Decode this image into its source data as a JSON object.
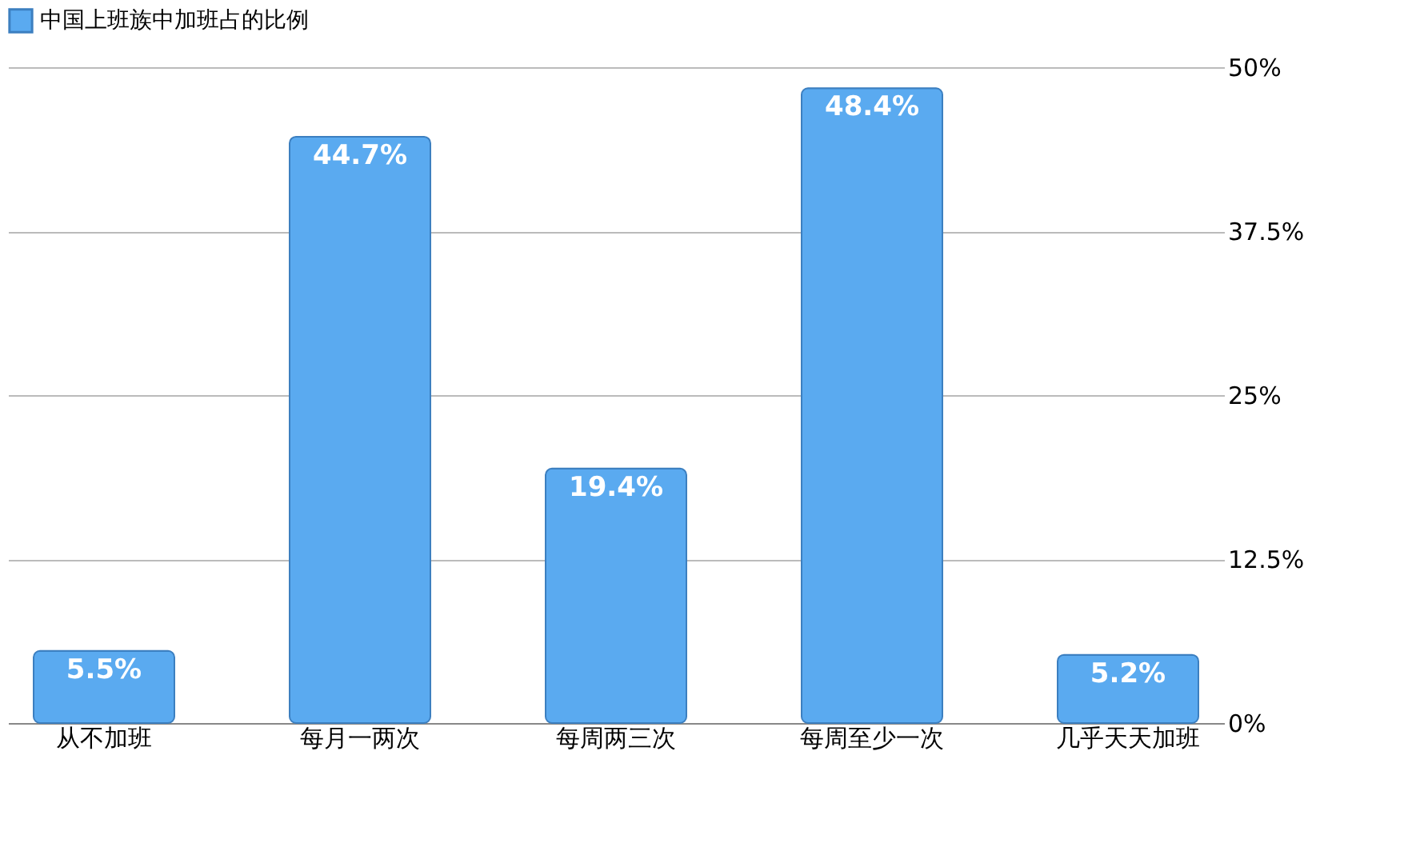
{
  "chart_data": {
    "type": "bar",
    "categories": [
      "从不加班",
      "每月一两次",
      "每周两三次",
      "每周至少一次",
      "几乎天天加班"
    ],
    "series": [
      {
        "name": "中国上班族中加班占的比例",
        "color": "#5aaaf0",
        "values": [
          5.5,
          44.7,
          19.4,
          48.4,
          5.2
        ]
      }
    ],
    "value_labels": [
      "5.5%",
      "44.7%",
      "19.4%",
      "48.4%",
      "5.2%"
    ],
    "ylim": [
      0,
      50
    ],
    "yticks": [
      {
        "value": 0,
        "label": "0%"
      },
      {
        "value": 12.5,
        "label": "12.5%"
      },
      {
        "value": 25,
        "label": "25%"
      },
      {
        "value": 37.5,
        "label": "37.5%"
      },
      {
        "value": 50,
        "label": "50%"
      }
    ],
    "grid": "y",
    "legend": "top"
  }
}
